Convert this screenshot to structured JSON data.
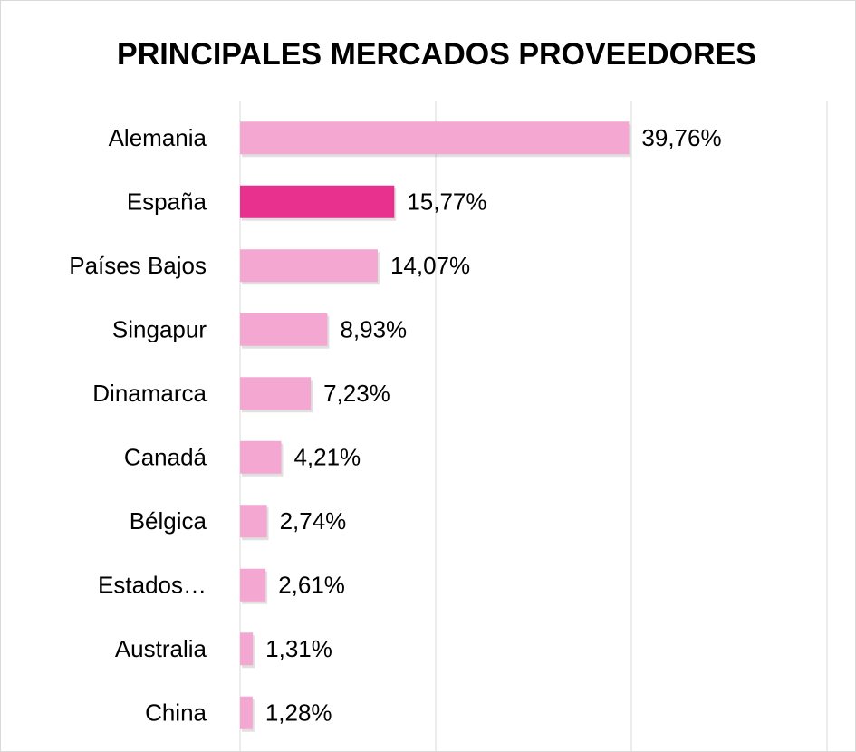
{
  "chart_data": {
    "type": "barh",
    "title": "PRINCIPALES MERCADOS PROVEEDORES",
    "categories": [
      "Alemania",
      "España",
      "Países Bajos",
      "Singapur",
      "Dinamarca",
      "Canadá",
      "Bélgica",
      "Estados…",
      "Australia",
      "China"
    ],
    "values": [
      39.76,
      15.77,
      14.07,
      8.93,
      7.23,
      4.21,
      2.74,
      2.61,
      1.31,
      1.28
    ],
    "value_labels": [
      "39,76%",
      "15,77%",
      "14,07%",
      "8,93%",
      "7,23%",
      "4,21%",
      "2,74%",
      "2,61%",
      "1,31%",
      "1,28%"
    ],
    "colors": [
      "#f4a7d0",
      "#e8308f",
      "#f4a7d0",
      "#f4a7d0",
      "#f4a7d0",
      "#f4a7d0",
      "#f4a7d0",
      "#f4a7d0",
      "#f4a7d0",
      "#f4a7d0"
    ],
    "xlim": [
      0,
      60
    ],
    "xticks": [
      0,
      20,
      40,
      60
    ],
    "grid": true
  }
}
